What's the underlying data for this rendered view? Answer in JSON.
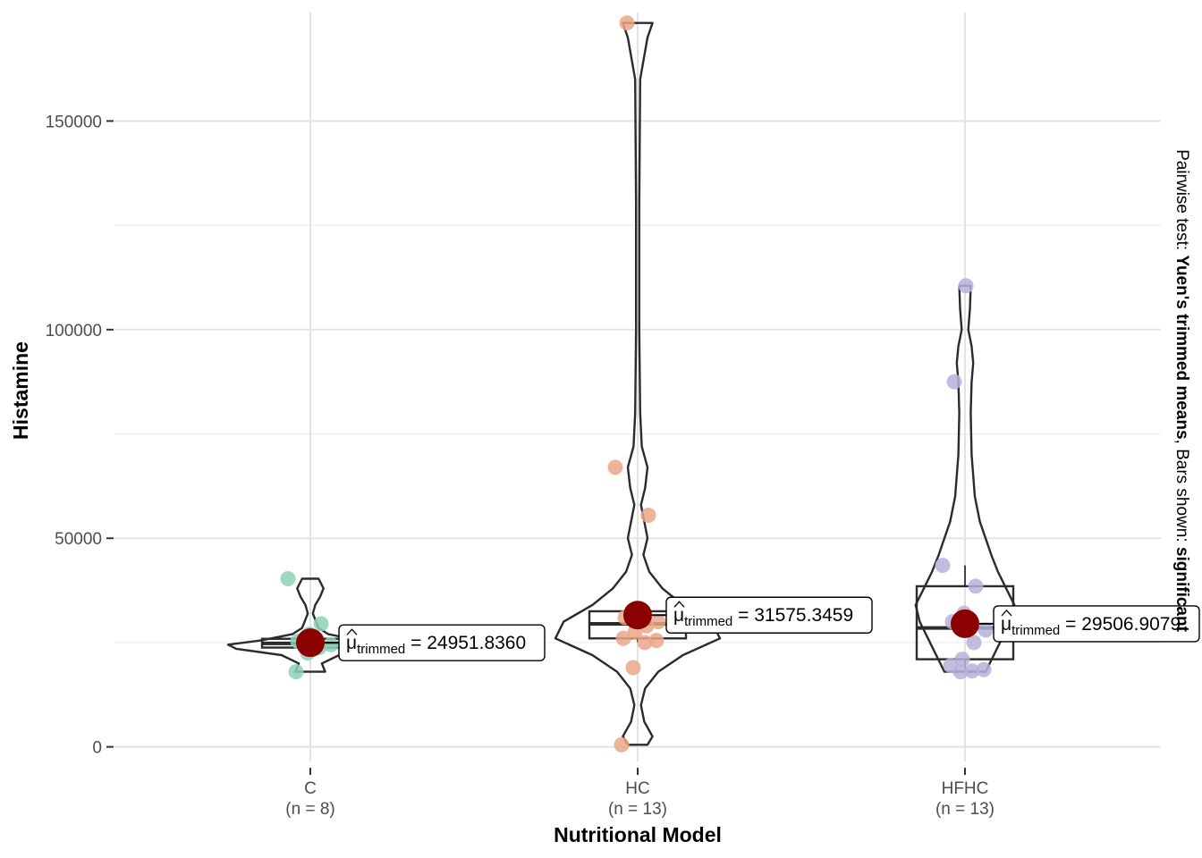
{
  "chart_data": {
    "type": "violin-box",
    "xlabel": "Nutritional Model",
    "ylabel": "Histamine",
    "ylim": [
      -3500,
      176000
    ],
    "yticks": [
      0,
      50000,
      100000,
      150000
    ],
    "ytick_labels": [
      "0",
      "50000",
      "100000",
      "150000"
    ],
    "grid": true,
    "categories": [
      {
        "name": "C",
        "n_label": "(n = 8)",
        "color": "#8fd0b4",
        "points": [
          40300,
          29500,
          27000,
          25300,
          24500,
          23800,
          22500,
          18000
        ],
        "box": {
          "q1": 23800,
          "median": 24800,
          "q3": 25900,
          "whisker_low": 23000,
          "whisker_high": 28500
        },
        "violin": {
          "y": [
            18000,
            20000,
            22000,
            23500,
            24500,
            25500,
            27000,
            28500,
            30000,
            32000,
            34000,
            36000,
            38000,
            40300
          ],
          "w": [
            0.18,
            0.14,
            0.35,
            0.9,
            1.0,
            0.6,
            0.22,
            0.1,
            0.07,
            0.03,
            0.06,
            0.12,
            0.16,
            0.1
          ]
        },
        "mean": 24951.836,
        "mean_label_prefix": "μ",
        "mean_label_sub": "trimmed",
        "mean_label_value": "= 24951.8360"
      },
      {
        "name": "HC",
        "n_label": "(n = 13)",
        "color": "#eaa78a",
        "points": [
          173500,
          67000,
          55500,
          32800,
          31000,
          30000,
          29000,
          27500,
          26000,
          25500,
          25000,
          19000,
          500
        ],
        "box": {
          "q1": 26000,
          "median": 29500,
          "q3": 32500,
          "whisker_low": 25000,
          "whisker_high": 34000
        },
        "violin": {
          "y": [
            500,
            2500,
            6000,
            10000,
            14000,
            18000,
            22000,
            26000,
            30000,
            34000,
            38000,
            42000,
            46000,
            50000,
            54000,
            58000,
            62000,
            67000,
            72000,
            80000,
            100000,
            130000,
            160000,
            170000,
            173500
          ],
          "w": [
            0.12,
            0.18,
            0.08,
            0.04,
            0.09,
            0.25,
            0.55,
            1.0,
            0.9,
            0.55,
            0.3,
            0.14,
            0.07,
            0.12,
            0.08,
            0.04,
            0.09,
            0.12,
            0.05,
            0.03,
            0.02,
            0.02,
            0.03,
            0.12,
            0.18
          ]
        },
        "mean": 31575.3459,
        "mean_label_prefix": "μ",
        "mean_label_sub": "trimmed",
        "mean_label_value": "= 31575.3459"
      },
      {
        "name": "HFHC",
        "n_label": "(n = 13)",
        "color": "#b6b2d9",
        "points": [
          110500,
          87500,
          43500,
          38500,
          32000,
          30000,
          28000,
          25000,
          21000,
          19500,
          18500,
          18200,
          18000
        ],
        "box": {
          "q1": 21000,
          "median": 28500,
          "q3": 38500,
          "whisker_low": 18000,
          "whisker_high": 43500
        },
        "violin": {
          "y": [
            18000,
            22000,
            26000,
            30000,
            34000,
            38000,
            42000,
            46000,
            50000,
            54000,
            60000,
            70000,
            80000,
            87500,
            92000,
            96000,
            100000,
            105000,
            110500
          ],
          "w": [
            0.25,
            0.35,
            0.45,
            0.55,
            0.6,
            0.5,
            0.4,
            0.32,
            0.25,
            0.18,
            0.12,
            0.08,
            0.07,
            0.08,
            0.1,
            0.08,
            0.04,
            0.06,
            0.07
          ]
        },
        "mean": 29506.9079,
        "mean_label_prefix": "μ",
        "mean_label_sub": "trimmed",
        "mean_label_value": "= 29506.9079"
      }
    ],
    "mean_color": "#8b0000",
    "side_caption": {
      "prefix": "Pairwise test: ",
      "test": "Yuen's trimmed means",
      "middle": ", Bars shown: ",
      "bars": "significant"
    }
  }
}
